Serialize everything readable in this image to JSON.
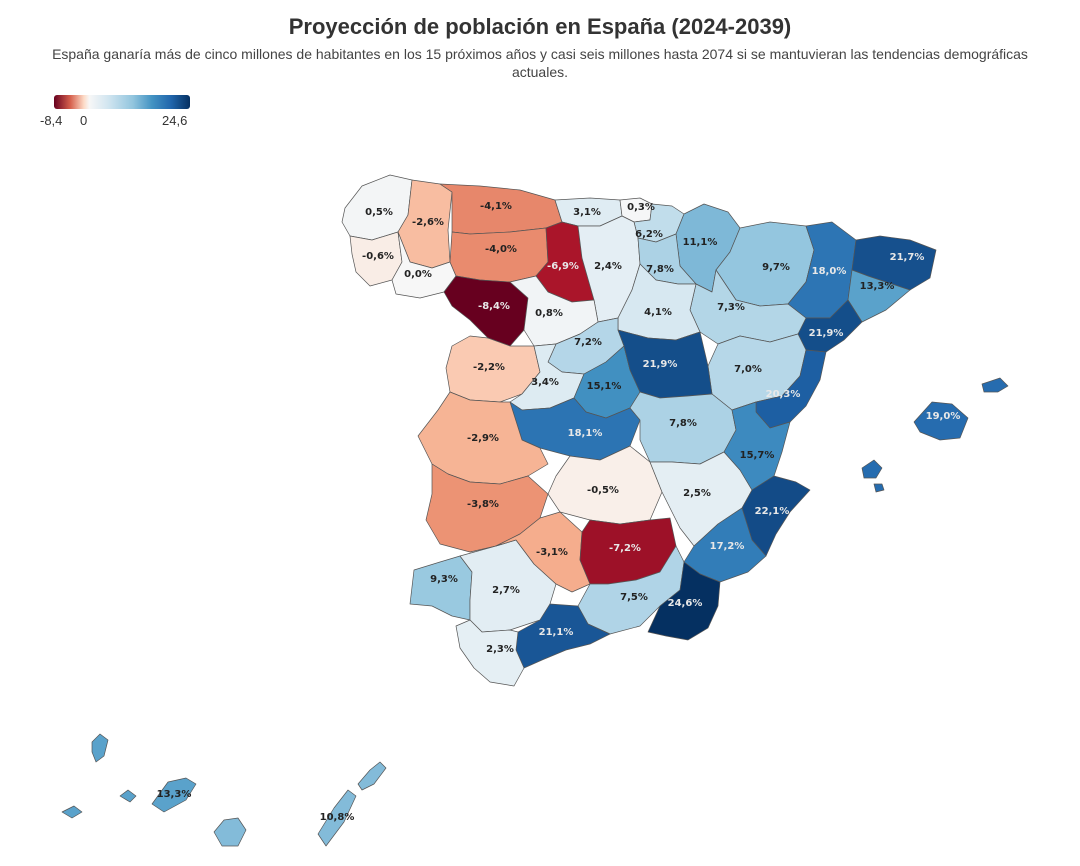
{
  "title": "Proyección de población en España (2024-2039)",
  "subtitle": "España ganaría más de cinco millones de habitantes en los 15 próximos años y casi seis millones hasta 2074 si se mantuvieran las tendencias demográficas actuales.",
  "legend": {
    "min_label": "-8,4",
    "zero_label": "0",
    "max_label": "24,6",
    "min": -8.4,
    "max": 24.6
  },
  "colors": {
    "strong_neg": "#67001f",
    "neg": "#b2182b",
    "mid_neg": "#e7876a",
    "light_neg": "#f4b497",
    "neutral": "#f7f7f7",
    "light_pos": "#d1e5f0",
    "mid_pos": "#92c5de",
    "pos": "#4393c3",
    "strong_pos": "#2166ac",
    "max_pos": "#053061"
  },
  "provinces": [
    {
      "id": "a-coruna",
      "label": "0,5%",
      "value": 0.5
    },
    {
      "id": "lugo",
      "label": "-2,6%",
      "value": -2.6
    },
    {
      "id": "asturias",
      "label": "-4,1%",
      "value": -4.1
    },
    {
      "id": "cantabria",
      "label": "3,1%",
      "value": 3.1
    },
    {
      "id": "bizkaia",
      "label": "0,3%",
      "value": 0.3
    },
    {
      "id": "gipuzkoa",
      "label": "6,2%",
      "value": 6.2
    },
    {
      "id": "navarra",
      "label": "11,1%",
      "value": 11.1
    },
    {
      "id": "huesca",
      "label": "9,7%",
      "value": 9.7
    },
    {
      "id": "lleida",
      "label": "18,0%",
      "value": 18.0
    },
    {
      "id": "girona",
      "label": "21,7%",
      "value": 21.7
    },
    {
      "id": "pontevedra",
      "label": "-0,6%",
      "value": -0.6
    },
    {
      "id": "ourense",
      "label": "0,0%",
      "value": 0.0
    },
    {
      "id": "leon",
      "label": "-4,0%",
      "value": -4.0
    },
    {
      "id": "palencia",
      "label": "-6,9%",
      "value": -6.9
    },
    {
      "id": "burgos",
      "label": "2,4%",
      "value": 2.4
    },
    {
      "id": "la-rioja",
      "label": "7,8%",
      "value": 7.8
    },
    {
      "id": "zaragoza",
      "label": "7,3%",
      "value": 7.3
    },
    {
      "id": "barcelona",
      "label": "13,3%",
      "value": 13.3
    },
    {
      "id": "zamora",
      "label": "-8,4%",
      "value": -8.4
    },
    {
      "id": "valladolid",
      "label": "0,8%",
      "value": 0.8
    },
    {
      "id": "soria",
      "label": "4,1%",
      "value": 4.1
    },
    {
      "id": "tarragona",
      "label": "21,9%",
      "value": 21.9
    },
    {
      "id": "salamanca",
      "label": "-2,2%",
      "value": -2.2
    },
    {
      "id": "segovia",
      "label": "7,2%",
      "value": 7.2
    },
    {
      "id": "guadalajara",
      "label": "21,9%",
      "value": 21.9
    },
    {
      "id": "teruel",
      "label": "7,0%",
      "value": 7.0
    },
    {
      "id": "avila",
      "label": "3,4%",
      "value": 3.4
    },
    {
      "id": "madrid",
      "label": "15,1%",
      "value": 15.1
    },
    {
      "id": "castellon",
      "label": "20,3%",
      "value": 20.3
    },
    {
      "id": "baleares",
      "label": "19,0%",
      "value": 19.0
    },
    {
      "id": "caceres",
      "label": "-2,9%",
      "value": -2.9
    },
    {
      "id": "toledo",
      "label": "18,1%",
      "value": 18.1
    },
    {
      "id": "cuenca",
      "label": "7,8%",
      "value": 7.8
    },
    {
      "id": "valencia",
      "label": "15,7%",
      "value": 15.7
    },
    {
      "id": "badajoz",
      "label": "-3,8%",
      "value": -3.8
    },
    {
      "id": "ciudad-real",
      "label": "-0,5%",
      "value": -0.5
    },
    {
      "id": "albacete",
      "label": "2,5%",
      "value": 2.5
    },
    {
      "id": "alicante",
      "label": "22,1%",
      "value": 22.1
    },
    {
      "id": "cordoba",
      "label": "-3,1%",
      "value": -3.1
    },
    {
      "id": "jaen",
      "label": "-7,2%",
      "value": -7.2
    },
    {
      "id": "murcia",
      "label": "17,2%",
      "value": 17.2
    },
    {
      "id": "huelva",
      "label": "9,3%",
      "value": 9.3
    },
    {
      "id": "sevilla",
      "label": "2,7%",
      "value": 2.7
    },
    {
      "id": "granada",
      "label": "7,5%",
      "value": 7.5
    },
    {
      "id": "almeria",
      "label": "24,6%",
      "value": 24.6
    },
    {
      "id": "malaga",
      "label": "21,1%",
      "value": 21.1
    },
    {
      "id": "cadiz",
      "label": "2,3%",
      "value": 2.3
    },
    {
      "id": "santa-cruz-de-tenerife",
      "label": "13,3%",
      "value": 13.3
    },
    {
      "id": "las-palmas",
      "label": "10,8%",
      "value": 10.8
    }
  ]
}
